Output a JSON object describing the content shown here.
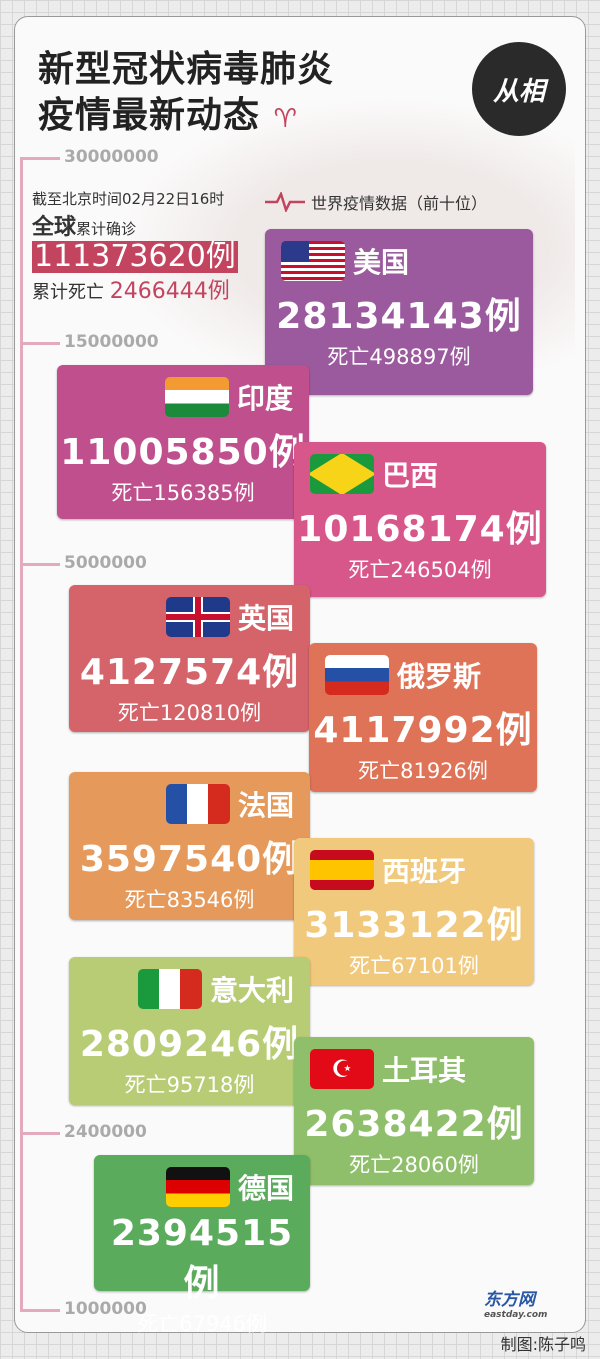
{
  "header": {
    "title_line1": "新型冠状病毒肺炎",
    "title_line2": "疫情最新动态",
    "logo_text": "从相"
  },
  "axis": {
    "ticks": [
      "30000000",
      "15000000",
      "5000000",
      "2400000",
      "1000000"
    ]
  },
  "summary": {
    "as_of": "截至北京时间02月22日16时",
    "global_label": "全球",
    "confirmed_label": "累计确诊",
    "total_confirmed": "111373620例",
    "deaths_label": "累计死亡",
    "total_deaths": "2466444例"
  },
  "section_title": "世界疫情数据（前十位）",
  "countries": [
    {
      "name": "美国",
      "cases": "28134143例",
      "deaths": "死亡498897例",
      "color": "#9b5a9e",
      "flag": "us"
    },
    {
      "name": "印度",
      "cases": "11005850例",
      "deaths": "死亡156385例",
      "color": "#c0508d",
      "flag": "in"
    },
    {
      "name": "巴西",
      "cases": "10168174例",
      "deaths": "死亡246504例",
      "color": "#d8578a",
      "flag": "br"
    },
    {
      "name": "英国",
      "cases": "4127574例",
      "deaths": "死亡120810例",
      "color": "#d5646a",
      "flag": "gb"
    },
    {
      "name": "俄罗斯",
      "cases": "4117992例",
      "deaths": "死亡81926例",
      "color": "#df7357",
      "flag": "ru"
    },
    {
      "name": "法国",
      "cases": "3597540例",
      "deaths": "死亡83546例",
      "color": "#e59a5c",
      "flag": "fr"
    },
    {
      "name": "西班牙",
      "cases": "3133122例",
      "deaths": "死亡67101例",
      "color": "#f1c97c",
      "flag": "es"
    },
    {
      "name": "意大利",
      "cases": "2809246例",
      "deaths": "死亡95718例",
      "color": "#b8cc75",
      "flag": "it"
    },
    {
      "name": "土耳其",
      "cases": "2638422例",
      "deaths": "死亡28060例",
      "color": "#8fbf6b",
      "flag": "tr"
    },
    {
      "name": "德国",
      "cases": "2394515例",
      "deaths": "死亡67946例",
      "color": "#5aab5c",
      "flag": "de"
    }
  ],
  "brand": {
    "name": "东方网",
    "domain": "eastday.com"
  },
  "credit": "制图:陈子鸣"
}
